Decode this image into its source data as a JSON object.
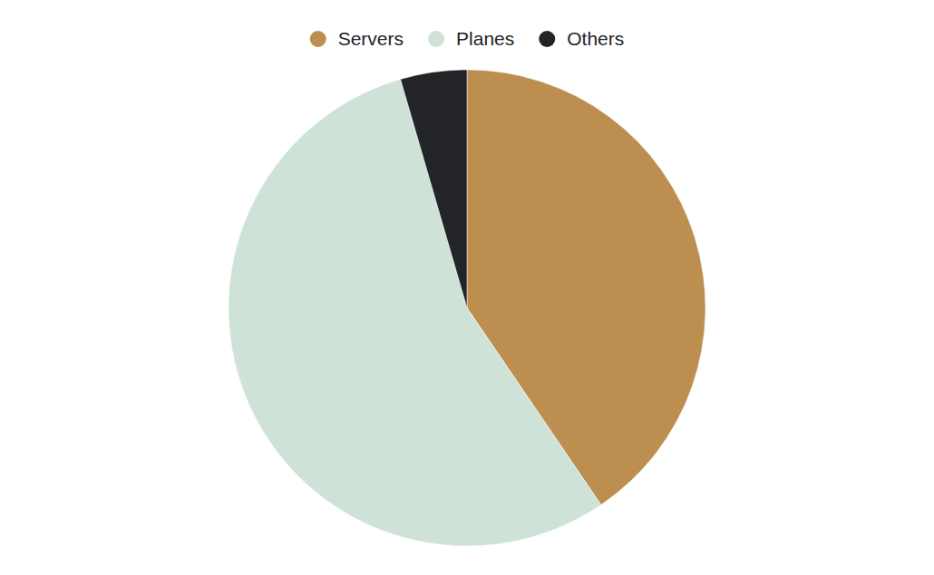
{
  "chart_data": {
    "type": "pie",
    "categories": [
      "Servers",
      "Planes",
      "Others"
    ],
    "values": [
      40.5,
      55,
      4.5
    ],
    "colors": [
      "#bc8e4f",
      "#cfe2d8",
      "#222428"
    ],
    "legend": "top"
  }
}
